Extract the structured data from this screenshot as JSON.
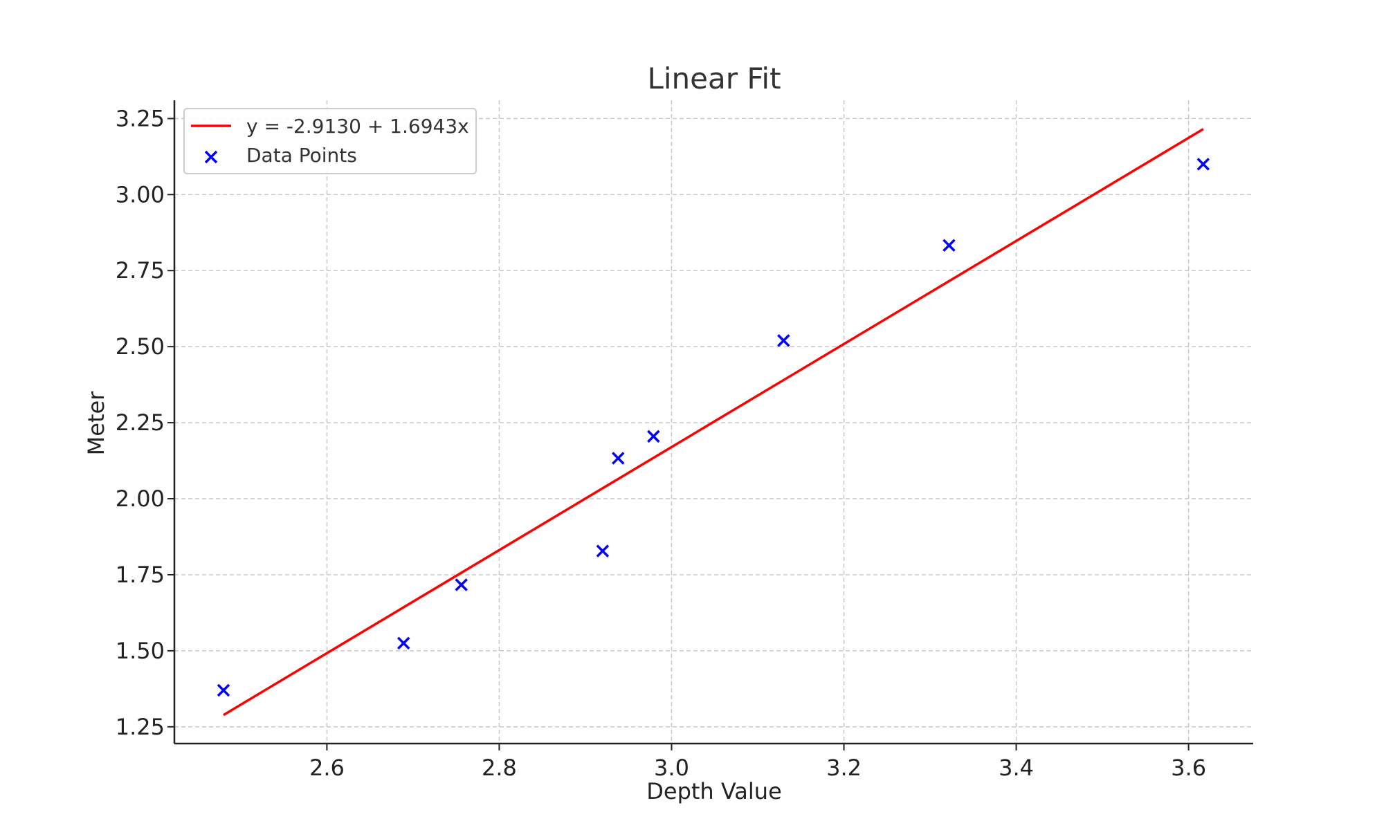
{
  "chart_data": {
    "type": "scatter",
    "title": "Linear Fit",
    "xlabel": "Depth Value",
    "ylabel": "Meter",
    "xlim": [
      2.423,
      3.675
    ],
    "ylim": [
      1.195,
      3.31
    ],
    "x_ticks": [
      "2.6",
      "2.8",
      "3.0",
      "3.2",
      "3.4",
      "3.6"
    ],
    "y_ticks": [
      "1.25",
      "1.50",
      "1.75",
      "2.00",
      "2.25",
      "2.50",
      "2.75",
      "3.00",
      "3.25"
    ],
    "grid": true,
    "legend_position": "top-left",
    "series": [
      {
        "name": "y = -2.9130 + 1.6943x",
        "kind": "line",
        "color": "#ff0000",
        "intercept": -2.913,
        "slope": 1.6943,
        "x": [
          2.48,
          3.617
        ]
      },
      {
        "name": "Data Points",
        "kind": "scatter",
        "marker": "x",
        "color": "#0000ff",
        "x": [
          2.48,
          2.689,
          2.756,
          2.92,
          2.938,
          2.979,
          3.13,
          3.322,
          3.617
        ],
        "y": [
          1.37,
          1.525,
          1.717,
          1.828,
          2.133,
          2.205,
          2.52,
          2.833,
          3.1
        ]
      }
    ]
  }
}
